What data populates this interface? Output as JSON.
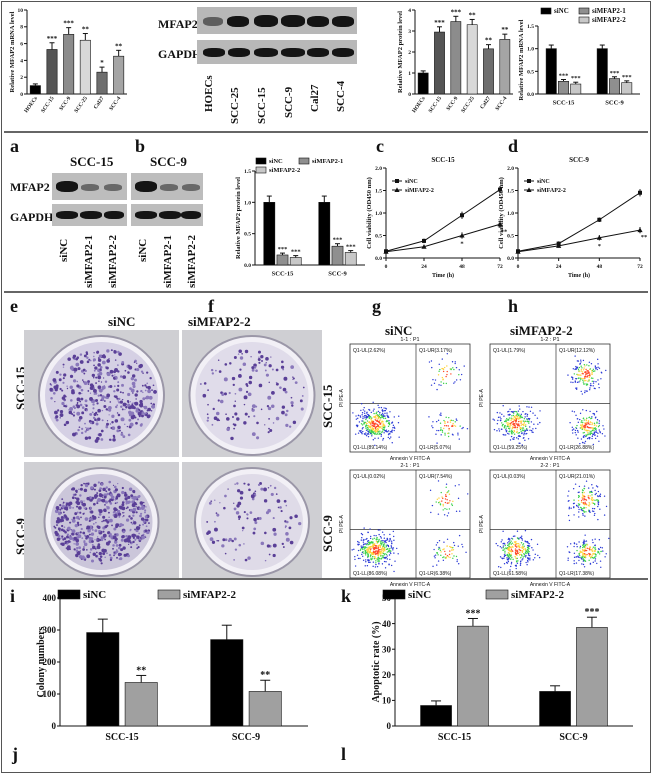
{
  "panel_letters": {
    "a": "a",
    "b": "b",
    "c": "c",
    "d": "d",
    "e": "e",
    "f": "f",
    "g": "g",
    "h": "h",
    "i": "i",
    "j": "j",
    "k": "k",
    "l": "l"
  },
  "wb_top": {
    "target": "MFAP2",
    "control": "GAPDH",
    "lanes": [
      "HOECs",
      "SCC-25",
      "SCC-15",
      "SCC-9",
      "Cal27",
      "SCC-4"
    ]
  },
  "wb_mid": {
    "target": "MFAP2",
    "control": "GAPDH",
    "group1": "SCC-15",
    "group2": "SCC-9",
    "lanes": [
      "siNC",
      "siMFAP2-1",
      "siMFAP2-2",
      "siNC",
      "siMFAP2-1",
      "siMFAP2-2"
    ]
  },
  "colony": {
    "col1": "siNC",
    "col2": "siMFAP2-2",
    "row1": "SCC-15",
    "row2": "SCC-9"
  },
  "flow": {
    "col1": "siNC",
    "col2": "siMFAP2-2",
    "row1": "SCC-15",
    "row2": "SCC-9",
    "xlabel": "Annexin V FITC-A",
    "ylabel": "PI PE-A",
    "plots": [
      {
        "title": "1-1 : P1",
        "ul": "Q1-UL(2.62%)",
        "ur": "Q1-UR(3.17%)",
        "ll": "Q1-LL(89.14%)",
        "lr": "Q1-LR(5.07%)"
      },
      {
        "title": "1-2 : P1",
        "ul": "Q1-UL(1.79%)",
        "ur": "Q1-UR(12.12%)",
        "ll": "Q1-LL(59.25%)",
        "lr": "Q1-LR(26.88%)"
      },
      {
        "title": "2-1 : P1",
        "ul": "Q1-UL(0.02%)",
        "ur": "Q1-UR(7.54%)",
        "ll": "Q1-LL(86.08%)",
        "lr": "Q1-LR(6.38%)"
      },
      {
        "title": "2-2 : P1",
        "ul": "Q1-UL(0.03%)",
        "ur": "Q1-UR(21.01%)",
        "ll": "Q1-LL(61.58%)",
        "lr": "Q1-LR(17.38%)"
      }
    ]
  },
  "chart_data": [
    {
      "id": "c1",
      "type": "bar",
      "ylabel": "Relative MFAP2 mRNA level",
      "ylim": [
        0,
        10
      ],
      "yticks": [
        0,
        2,
        4,
        6,
        8,
        10
      ],
      "categories": [
        "HOECs",
        "SCC-15",
        "SCC-9",
        "SCC-25",
        "Cal27",
        "SCC-4"
      ],
      "values": [
        1.0,
        5.3,
        7.1,
        6.4,
        2.6,
        4.5
      ],
      "errors": [
        0.2,
        0.8,
        0.8,
        0.8,
        0.6,
        0.7
      ],
      "sig": [
        "",
        "***",
        "***",
        "**",
        "*",
        "**"
      ],
      "colors": [
        "#000000",
        "#555555",
        "#8c8c8c",
        "#d8d8d8",
        "#6e6e6e",
        "#a5a5a5"
      ]
    },
    {
      "id": "c2",
      "type": "bar",
      "ylabel": "Relative MFAP2 protein level",
      "ylim": [
        0,
        4
      ],
      "yticks": [
        0,
        1,
        2,
        3,
        4
      ],
      "categories": [
        "HOECs",
        "SCC-15",
        "SCC-9",
        "SCC-25",
        "Cal27",
        "SCC-4"
      ],
      "values": [
        1.0,
        2.95,
        3.45,
        3.3,
        2.15,
        2.6
      ],
      "errors": [
        0.1,
        0.25,
        0.25,
        0.25,
        0.2,
        0.25
      ],
      "sig": [
        "",
        "***",
        "***",
        "**",
        "**",
        "**"
      ],
      "colors": [
        "#000000",
        "#555555",
        "#8c8c8c",
        "#d8d8d8",
        "#6e6e6e",
        "#a5a5a5"
      ]
    },
    {
      "id": "c3",
      "type": "grouped-bar",
      "ylabel": "Relative MFAP2 mRNA level",
      "ylim": [
        0,
        1.5
      ],
      "yticks": [
        0.0,
        0.5,
        1.0,
        1.5
      ],
      "categories": [
        "SCC-15",
        "SCC-9"
      ],
      "series": [
        {
          "name": "siNC",
          "values": [
            1.0,
            1.0
          ],
          "errors": [
            0.08,
            0.08
          ],
          "sig": [
            "",
            ""
          ],
          "color": "#000000"
        },
        {
          "name": "siMFAP2-1",
          "values": [
            0.28,
            0.34
          ],
          "errors": [
            0.04,
            0.04
          ],
          "sig": [
            "***",
            "***"
          ],
          "color": "#8f8f8f"
        },
        {
          "name": "siMFAP2-2",
          "values": [
            0.22,
            0.25
          ],
          "errors": [
            0.04,
            0.04
          ],
          "sig": [
            "***",
            "***"
          ],
          "color": "#c8c8c8"
        }
      ]
    },
    {
      "id": "c4",
      "type": "grouped-bar",
      "ylabel": "Relative MFAP2 protein level",
      "ylim": [
        0,
        1.5
      ],
      "yticks": [
        0.0,
        0.5,
        1.0,
        1.5
      ],
      "categories": [
        "SCC-15",
        "SCC-9"
      ],
      "series": [
        {
          "name": "siNC",
          "values": [
            1.0,
            1.0
          ],
          "errors": [
            0.1,
            0.1
          ],
          "sig": [
            "",
            ""
          ],
          "color": "#000000"
        },
        {
          "name": "siMFAP2-1",
          "values": [
            0.16,
            0.3
          ],
          "errors": [
            0.03,
            0.04
          ],
          "sig": [
            "***",
            "***"
          ],
          "color": "#8f8f8f"
        },
        {
          "name": "siMFAP2-2",
          "values": [
            0.12,
            0.2
          ],
          "errors": [
            0.03,
            0.03
          ],
          "sig": [
            "***",
            "***"
          ],
          "color": "#c8c8c8"
        }
      ]
    },
    {
      "id": "c5",
      "type": "line",
      "title": "SCC-15",
      "xlabel": "Time (h)",
      "ylabel": "Cell viability (OD450 nm)",
      "xlim": [
        0,
        72
      ],
      "ylim": [
        0,
        2.0
      ],
      "x": [
        0,
        24,
        48,
        72
      ],
      "xticks": [
        0,
        24,
        48,
        72
      ],
      "yticks": [
        0.0,
        0.5,
        1.0,
        1.5,
        2.0
      ],
      "series": [
        {
          "name": "siNC",
          "values": [
            0.15,
            0.38,
            0.95,
            1.52
          ],
          "errors": [
            0.03,
            0.05,
            0.08,
            0.08
          ],
          "sig": [
            "",
            "",
            "",
            ""
          ]
        },
        {
          "name": "siMFAP2-2",
          "values": [
            0.14,
            0.25,
            0.5,
            0.75
          ],
          "errors": [
            0.03,
            0.04,
            0.07,
            0.08
          ],
          "sig": [
            "",
            "",
            "*",
            "**"
          ]
        }
      ]
    },
    {
      "id": "c6",
      "type": "line",
      "title": "SCC-9",
      "xlabel": "Time (h)",
      "ylabel": "Cell viability (OD450 nm)",
      "xlim": [
        0,
        72
      ],
      "ylim": [
        0,
        2.0
      ],
      "x": [
        0,
        24,
        48,
        72
      ],
      "xticks": [
        0,
        24,
        48,
        72
      ],
      "yticks": [
        0.0,
        0.5,
        1.0,
        1.5,
        2.0
      ],
      "series": [
        {
          "name": "siNC",
          "values": [
            0.15,
            0.32,
            0.85,
            1.45
          ],
          "errors": [
            0.03,
            0.05,
            0.05,
            0.08
          ],
          "sig": [
            "",
            "",
            "",
            ""
          ]
        },
        {
          "name": "siMFAP2-2",
          "values": [
            0.14,
            0.27,
            0.45,
            0.62
          ],
          "errors": [
            0.03,
            0.04,
            0.06,
            0.07
          ],
          "sig": [
            "",
            "",
            "*",
            "**"
          ]
        }
      ]
    },
    {
      "id": "c7",
      "type": "grouped-bar",
      "ylabel": "Colony numbers",
      "ylim": [
        0,
        400
      ],
      "yticks": [
        0,
        100,
        200,
        300,
        400
      ],
      "categories": [
        "SCC-15",
        "SCC-9"
      ],
      "series": [
        {
          "name": "siNC",
          "values": [
            292,
            270
          ],
          "errors": [
            42,
            45
          ],
          "sig": [
            "",
            ""
          ],
          "color": "#000000"
        },
        {
          "name": "siMFAP2-2",
          "values": [
            136,
            108
          ],
          "errors": [
            22,
            35
          ],
          "sig": [
            "**",
            "**"
          ],
          "color": "#a0a0a0"
        }
      ]
    },
    {
      "id": "c8",
      "type": "grouped-bar",
      "ylabel": "Apoptotic rate (%)",
      "ylim": [
        0,
        50
      ],
      "yticks": [
        0,
        10,
        20,
        30,
        40,
        50
      ],
      "categories": [
        "SCC-15",
        "SCC-9"
      ],
      "series": [
        {
          "name": "siNC",
          "values": [
            8,
            13.5
          ],
          "errors": [
            1.8,
            2.2
          ],
          "sig": [
            "",
            ""
          ],
          "color": "#000000"
        },
        {
          "name": "siMFAP2-2",
          "values": [
            39,
            38.5
          ],
          "errors": [
            3,
            4
          ],
          "sig": [
            "***",
            "***"
          ],
          "color": "#a0a0a0"
        }
      ]
    }
  ]
}
